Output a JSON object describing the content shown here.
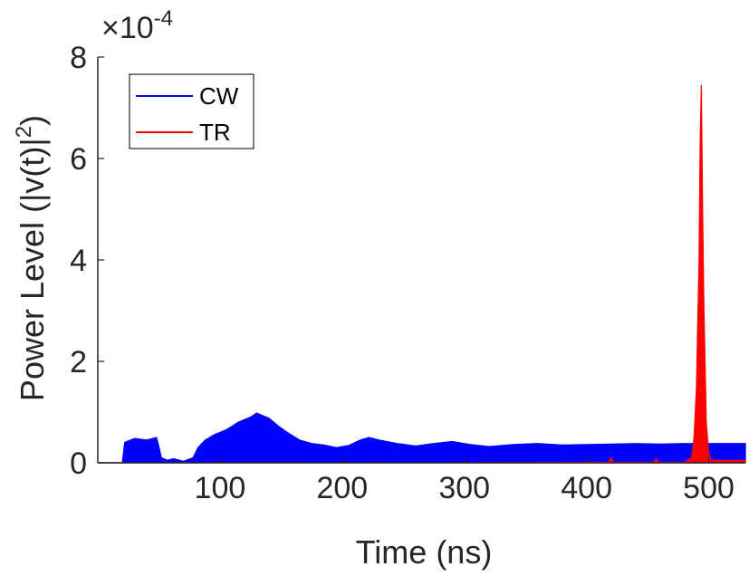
{
  "chart_data": {
    "type": "area",
    "xlabel": "Time (ns)",
    "ylabel_main": "Power Level (|v(t)|",
    "ylabel_sup": "2",
    "ylabel_tail": ")",
    "exponent": {
      "base": "×10",
      "power": "-4"
    },
    "xlim": [
      0,
      530
    ],
    "ylim": [
      0,
      8
    ],
    "xticks": [
      "100",
      "200",
      "300",
      "400",
      "500"
    ],
    "xtick_values": [
      100,
      200,
      300,
      400,
      500
    ],
    "yticks": [
      "0",
      "2",
      "4",
      "6",
      "8"
    ],
    "ytick_values": [
      0,
      2,
      4,
      6,
      8
    ],
    "grid": false,
    "legend_position": "top-left",
    "series": [
      {
        "name": "CW",
        "color": "#0000ff",
        "x": [
          0,
          20,
          22,
          30,
          40,
          48,
          50,
          52,
          57,
          62,
          70,
          78,
          82,
          88,
          95,
          105,
          115,
          125,
          130,
          133,
          140,
          148,
          155,
          165,
          175,
          185,
          195,
          205,
          215,
          222,
          230,
          245,
          260,
          275,
          290,
          305,
          320,
          340,
          360,
          380,
          400,
          420,
          440,
          460,
          480,
          500,
          520,
          530
        ],
        "y": [
          0,
          0,
          0.4,
          0.48,
          0.45,
          0.5,
          0.32,
          0.1,
          0.05,
          0.08,
          0.03,
          0.1,
          0.3,
          0.45,
          0.55,
          0.65,
          0.8,
          0.9,
          0.98,
          0.95,
          0.88,
          0.72,
          0.6,
          0.45,
          0.38,
          0.35,
          0.3,
          0.34,
          0.45,
          0.5,
          0.45,
          0.38,
          0.33,
          0.38,
          0.42,
          0.36,
          0.32,
          0.36,
          0.38,
          0.35,
          0.36,
          0.37,
          0.38,
          0.37,
          0.38,
          0.38,
          0.38,
          0.38
        ]
      },
      {
        "name": "TR",
        "color": "#ff0000",
        "x": [
          0,
          300,
          400,
          418,
          420,
          422,
          440,
          455,
          457,
          459,
          480,
          486,
          488,
          490,
          491,
          492,
          493,
          494,
          495,
          496,
          497,
          498,
          500,
          502,
          510,
          520,
          530
        ],
        "y": [
          0,
          0,
          0.01,
          0.01,
          0.1,
          0.01,
          0.01,
          0.01,
          0.08,
          0.01,
          0.01,
          0.1,
          0.5,
          1.5,
          2.8,
          3.8,
          6.4,
          7.45,
          5.0,
          3.2,
          2.0,
          0.8,
          0.2,
          0.05,
          0.05,
          0.05,
          0.05
        ]
      }
    ]
  }
}
